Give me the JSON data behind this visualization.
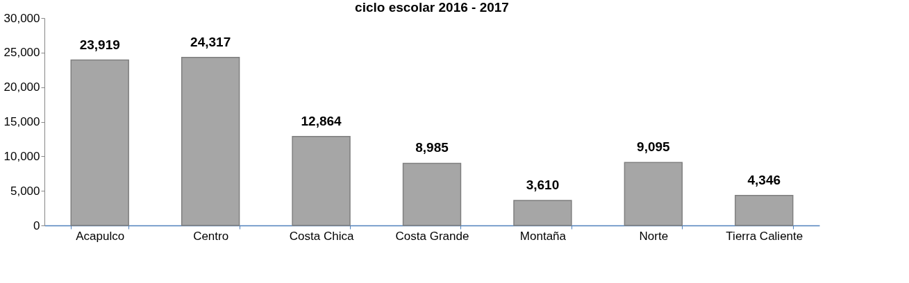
{
  "chart_data": {
    "type": "bar",
    "title": "ciclo escolar  2016 - 2017",
    "categories": [
      "Acapulco",
      "Centro",
      "Costa Chica",
      "Costa Grande",
      "Montaña",
      "Norte",
      "Tierra Caliente"
    ],
    "values": [
      23919,
      24317,
      12864,
      8985,
      3610,
      9095,
      4346
    ],
    "value_labels": [
      "23,919",
      "24,317",
      "12,864",
      "8,985",
      "3,610",
      "9,095",
      "4,346"
    ],
    "color": "#a6a6a6",
    "ylim": [
      0,
      30000
    ],
    "yticks": [
      0,
      {
        "value": 5000,
        "label": "5,000"
      },
      {
        "value": 10000,
        "label": "10,000"
      },
      {
        "value": 15000,
        "label": "15,000"
      },
      {
        "value": 20000,
        "label": "20,000"
      },
      {
        "value": 25000,
        "label": "25,000"
      },
      {
        "value": 30000,
        "label": "30,000"
      }
    ],
    "grid": false
  }
}
